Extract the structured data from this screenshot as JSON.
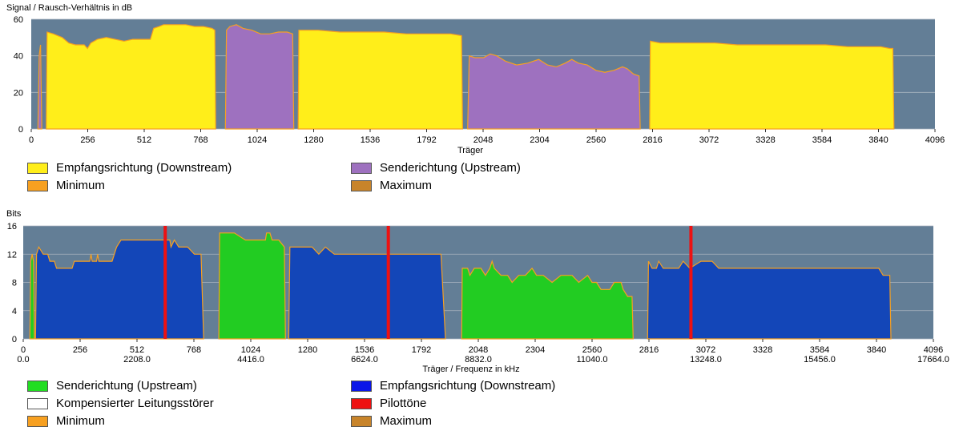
{
  "charts": [
    {
      "title": "Signal / Rausch-Verhältnis in dB",
      "xlabel": "Träger",
      "yticks": [
        "0",
        "20",
        "40",
        "60"
      ],
      "xticks": [
        "0",
        "256",
        "512",
        "768",
        "1024",
        "1280",
        "1536",
        "1792",
        "2048",
        "2304",
        "2560",
        "2816",
        "3072",
        "3328",
        "3584",
        "3840",
        "4096"
      ],
      "legend": [
        {
          "label": "Empfangsrichtung (Downstream)",
          "color": "#ffee1a"
        },
        {
          "label": "Senderichtung (Upstream)",
          "color": "#9e71bf"
        },
        {
          "label": "Minimum",
          "color": "#f7a020"
        },
        {
          "label": "Maximum",
          "color": "#c8842a"
        }
      ]
    },
    {
      "title": "Bits",
      "xlabel": "Träger / Frequenz in kHz",
      "yticks": [
        "0",
        "4",
        "8",
        "12",
        "16"
      ],
      "xticks": [
        "0",
        "256",
        "512",
        "768",
        "1024",
        "1280",
        "1536",
        "1792",
        "2048",
        "2304",
        "2560",
        "2816",
        "3072",
        "3328",
        "3584",
        "3840",
        "4096"
      ],
      "freq_ticks": [
        "0.0",
        "2208.0",
        "4416.0",
        "6624.0",
        "8832.0",
        "11040.0",
        "13248.0",
        "15456.0",
        "17664.0"
      ],
      "legend": [
        {
          "label": "Senderichtung (Upstream)",
          "color": "#22dd22"
        },
        {
          "label": "Empfangsrichtung (Downstream)",
          "color": "#0b16e8"
        },
        {
          "label": "Kompensierter Leitungsstörer",
          "color": "#ffffff"
        },
        {
          "label": "Pilottöne",
          "color": "#ee1111"
        },
        {
          "label": "Minimum",
          "color": "#f7a020"
        },
        {
          "label": "Maximum",
          "color": "#c8842a"
        }
      ]
    }
  ],
  "chart_data": [
    {
      "type": "area",
      "title": "Signal / Rausch-Verhältnis in dB",
      "xlabel": "Träger",
      "ylabel": "",
      "xlim": [
        0,
        4096
      ],
      "ylim": [
        0,
        60
      ],
      "grid": true,
      "series": [
        {
          "name": "Senderichtung (Upstream)",
          "color": "#9e71bf",
          "segments": [
            [
              [
                30,
                0
              ],
              [
                36,
                40
              ],
              [
                42,
                46
              ],
              [
                48,
                0
              ]
            ],
            [
              [
                880,
                0
              ],
              [
                885,
                54
              ],
              [
                900,
                56
              ],
              [
                930,
                57
              ],
              [
                960,
                55
              ],
              [
                1000,
                54
              ],
              [
                1040,
                52
              ],
              [
                1080,
                52
              ],
              [
                1120,
                53
              ],
              [
                1160,
                53
              ],
              [
                1185,
                52
              ],
              [
                1190,
                0
              ]
            ],
            [
              [
                1978,
                0
              ],
              [
                1985,
                40
              ],
              [
                2010,
                39
              ],
              [
                2050,
                39
              ],
              [
                2080,
                41
              ],
              [
                2110,
                40
              ],
              [
                2150,
                37
              ],
              [
                2200,
                35
              ],
              [
                2250,
                36
              ],
              [
                2300,
                38
              ],
              [
                2340,
                35
              ],
              [
                2380,
                34
              ],
              [
                2420,
                36
              ],
              [
                2450,
                38
              ],
              [
                2480,
                36
              ],
              [
                2520,
                35
              ],
              [
                2560,
                32
              ],
              [
                2600,
                31
              ],
              [
                2640,
                32
              ],
              [
                2680,
                34
              ],
              [
                2700,
                33
              ],
              [
                2730,
                30
              ],
              [
                2755,
                29
              ],
              [
                2760,
                0
              ]
            ]
          ]
        },
        {
          "name": "Empfangsrichtung (Downstream)",
          "color": "#ffee1a",
          "segments": [
            [
              [
                68,
                0
              ],
              [
                72,
                53
              ],
              [
                100,
                52
              ],
              [
                140,
                50
              ],
              [
                170,
                47
              ],
              [
                200,
                46
              ],
              [
                240,
                46
              ],
              [
                255,
                44
              ],
              [
                270,
                47
              ],
              [
                300,
                49
              ],
              [
                340,
                50
              ],
              [
                380,
                49
              ],
              [
                420,
                48
              ],
              [
                460,
                49
              ],
              [
                500,
                49
              ],
              [
                540,
                49
              ],
              [
                555,
                55
              ],
              [
                580,
                56
              ],
              [
                600,
                57
              ],
              [
                650,
                57
              ],
              [
                700,
                57
              ],
              [
                740,
                56
              ],
              [
                780,
                56
              ],
              [
                820,
                55
              ],
              [
                832,
                54
              ],
              [
                836,
                0
              ]
            ],
            [
              [
                1210,
                0
              ],
              [
                1213,
                54
              ],
              [
                1240,
                54
              ],
              [
                1300,
                54
              ],
              [
                1400,
                53
              ],
              [
                1500,
                53
              ],
              [
                1600,
                53
              ],
              [
                1700,
                52
              ],
              [
                1800,
                52
              ],
              [
                1900,
                52
              ],
              [
                1950,
                51
              ],
              [
                1955,
                0
              ]
            ],
            [
              [
                2803,
                0
              ],
              [
                2806,
                48
              ],
              [
                2850,
                47
              ],
              [
                2900,
                47
              ],
              [
                3000,
                47
              ],
              [
                3100,
                47
              ],
              [
                3200,
                46
              ],
              [
                3300,
                46
              ],
              [
                3400,
                46
              ],
              [
                3500,
                46
              ],
              [
                3600,
                46
              ],
              [
                3700,
                45
              ],
              [
                3800,
                45
              ],
              [
                3850,
                45
              ],
              [
                3890,
                44
              ],
              [
                3905,
                44
              ],
              [
                3910,
                0
              ]
            ]
          ]
        }
      ]
    },
    {
      "type": "area",
      "title": "Bits",
      "xlabel": "Träger / Frequenz in kHz",
      "ylabel": "",
      "xlim": [
        0,
        4096
      ],
      "ylim": [
        0,
        16
      ],
      "grid": true,
      "series": [
        {
          "name": "Senderichtung (Upstream)",
          "color": "#22cc22",
          "segments": [
            [
              [
                30,
                0
              ],
              [
                34,
                11
              ],
              [
                40,
                12
              ],
              [
                46,
                11
              ],
              [
                50,
                0
              ]
            ],
            [
              [
                880,
                0
              ],
              [
                884,
                15
              ],
              [
                900,
                15
              ],
              [
                950,
                15
              ],
              [
                1000,
                14
              ],
              [
                1050,
                14
              ],
              [
                1090,
                14
              ],
              [
                1095,
                15
              ],
              [
                1110,
                15
              ],
              [
                1120,
                14
              ],
              [
                1150,
                14
              ],
              [
                1175,
                13
              ],
              [
                1180,
                0
              ]
            ],
            [
              [
                1973,
                0
              ],
              [
                1976,
                10
              ],
              [
                2000,
                10
              ],
              [
                2010,
                9
              ],
              [
                2030,
                10
              ],
              [
                2060,
                10
              ],
              [
                2080,
                9
              ],
              [
                2100,
                10
              ],
              [
                2110,
                11
              ],
              [
                2120,
                10
              ],
              [
                2150,
                9
              ],
              [
                2180,
                9
              ],
              [
                2200,
                8
              ],
              [
                2230,
                9
              ],
              [
                2260,
                9
              ],
              [
                2290,
                10
              ],
              [
                2310,
                9
              ],
              [
                2340,
                9
              ],
              [
                2380,
                8
              ],
              [
                2420,
                9
              ],
              [
                2470,
                9
              ],
              [
                2500,
                8
              ],
              [
                2540,
                9
              ],
              [
                2560,
                8
              ],
              [
                2580,
                8
              ],
              [
                2600,
                7
              ],
              [
                2640,
                7
              ],
              [
                2660,
                8
              ],
              [
                2690,
                8
              ],
              [
                2700,
                7
              ],
              [
                2720,
                6
              ],
              [
                2740,
                6
              ],
              [
                2745,
                0
              ]
            ]
          ]
        },
        {
          "name": "Empfangsrichtung (Downstream)",
          "color": "#1346b8",
          "segments": [
            [
              [
                55,
                0
              ],
              [
                60,
                12
              ],
              [
                70,
                13
              ],
              [
                90,
                12
              ],
              [
                110,
                12
              ],
              [
                120,
                11
              ],
              [
                140,
                11
              ],
              [
                150,
                10
              ],
              [
                200,
                10
              ],
              [
                220,
                10
              ],
              [
                230,
                11
              ],
              [
                300,
                11
              ],
              [
                305,
                12
              ],
              [
                310,
                11
              ],
              [
                330,
                11
              ],
              [
                335,
                12
              ],
              [
                340,
                11
              ],
              [
                360,
                11
              ],
              [
                380,
                11
              ],
              [
                400,
                11
              ],
              [
                410,
                12
              ],
              [
                420,
                13
              ],
              [
                440,
                14
              ],
              [
                500,
                14
              ],
              [
                560,
                14
              ],
              [
                600,
                14
              ],
              [
                640,
                14
              ],
              [
                660,
                14
              ],
              [
                665,
                13
              ],
              [
                680,
                14
              ],
              [
                700,
                13
              ],
              [
                740,
                13
              ],
              [
                770,
                12
              ],
              [
                775,
                12
              ],
              [
                800,
                12
              ],
              [
                812,
                0
              ]
            ],
            [
              [
                1195,
                0
              ],
              [
                1200,
                13
              ],
              [
                1250,
                13
              ],
              [
                1300,
                13
              ],
              [
                1330,
                12
              ],
              [
                1360,
                13
              ],
              [
                1400,
                12
              ],
              [
                1450,
                12
              ],
              [
                1500,
                12
              ],
              [
                1550,
                12
              ],
              [
                1600,
                12
              ],
              [
                1700,
                12
              ],
              [
                1800,
                12
              ],
              [
                1880,
                12
              ],
              [
                1900,
                0
              ]
            ],
            [
              [
                2810,
                0
              ],
              [
                2814,
                11
              ],
              [
                2830,
                10
              ],
              [
                2850,
                10
              ],
              [
                2860,
                11
              ],
              [
                2880,
                10
              ],
              [
                2900,
                10
              ],
              [
                2950,
                10
              ],
              [
                2970,
                11
              ],
              [
                3000,
                10
              ],
              [
                3050,
                11
              ],
              [
                3100,
                11
              ],
              [
                3130,
                10
              ],
              [
                3200,
                10
              ],
              [
                3300,
                10
              ],
              [
                3400,
                10
              ],
              [
                3500,
                10
              ],
              [
                3600,
                10
              ],
              [
                3700,
                10
              ],
              [
                3800,
                10
              ],
              [
                3850,
                10
              ],
              [
                3870,
                9
              ],
              [
                3900,
                9
              ],
              [
                3905,
                0
              ]
            ]
          ]
        }
      ],
      "pilot_tones": [
        639,
        1643,
        3005
      ]
    }
  ]
}
